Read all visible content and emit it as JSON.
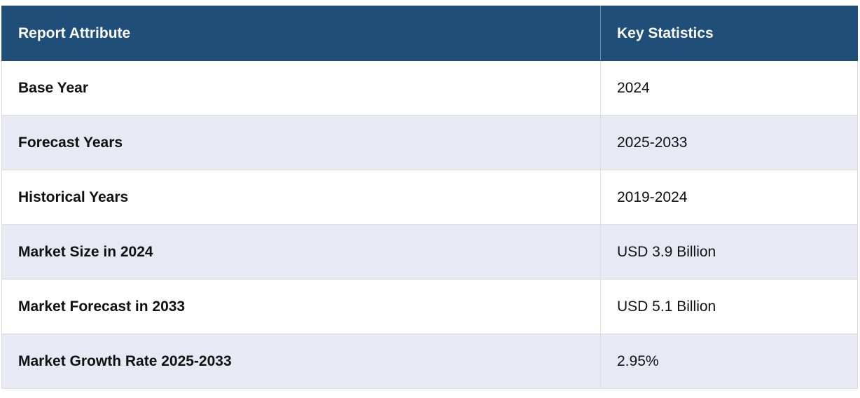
{
  "table": {
    "headers": [
      "Report Attribute",
      "Key Statistics"
    ],
    "rows": [
      {
        "attribute": "Base Year",
        "value": "2024"
      },
      {
        "attribute": "Forecast Years",
        "value": "2025-2033"
      },
      {
        "attribute": "Historical Years",
        "value": "2019-2024"
      },
      {
        "attribute": "Market Size in 2024",
        "value": "USD 3.9 Billion"
      },
      {
        "attribute": "Market Forecast in 2033",
        "value": "USD 5.1 Billion"
      },
      {
        "attribute": "Market Growth Rate 2025-2033",
        "value": "2.95%"
      }
    ]
  },
  "colors": {
    "header_bg": "#1f4e79",
    "header_text": "#ffffff",
    "row_alt_bg": "#e7e9f4"
  }
}
